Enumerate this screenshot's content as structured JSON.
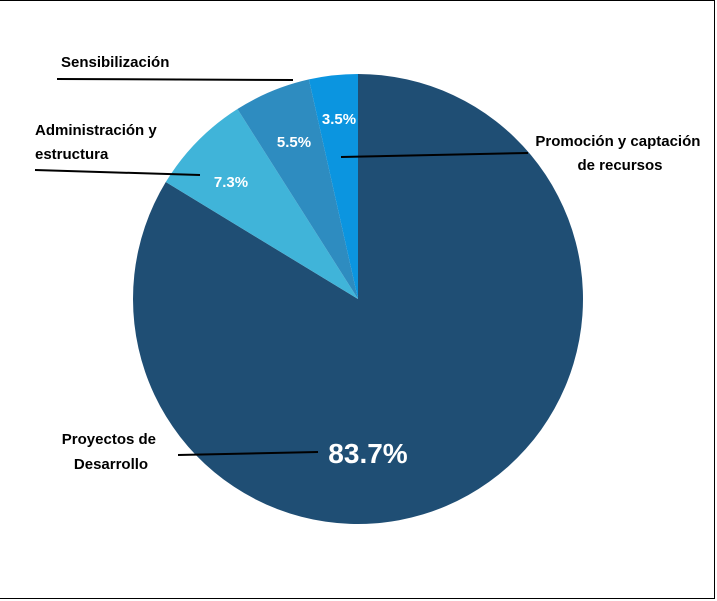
{
  "chart_data": {
    "type": "pie",
    "title": "",
    "start_angle_deg": 0,
    "direction": "clockwise",
    "slices": [
      {
        "label_lines": [
          "Proyectos de",
          "Desarrollo"
        ],
        "value": 83.7,
        "display": "83.7%",
        "color": "#1f4e74"
      },
      {
        "label_lines": [
          "Administración y",
          "estructura"
        ],
        "value": 7.3,
        "display": "7.3%",
        "color": "#40b4d9"
      },
      {
        "label_lines": [
          "Sensibilización"
        ],
        "value": 5.5,
        "display": "5.5%",
        "color": "#2e8cc0"
      },
      {
        "label_lines": [
          "Promoción y captación",
          "de recursos"
        ],
        "value": 3.5,
        "display": "3.5%",
        "color": "#0b95e0"
      }
    ]
  }
}
